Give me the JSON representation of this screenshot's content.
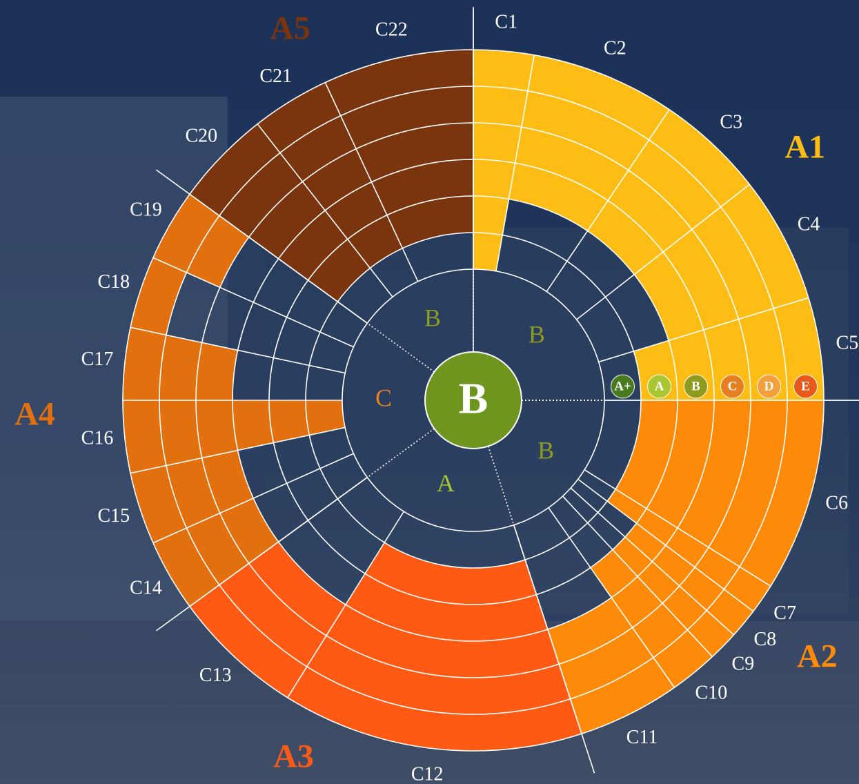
{
  "chart_data": {
    "type": "rating-wheel",
    "overall_rating": "B",
    "overall_color": "#6e961e",
    "scale": {
      "labels": [
        "A+",
        "A",
        "B",
        "C",
        "D",
        "E"
      ],
      "colors": [
        "#4a7a20",
        "#a8c532",
        "#8f9b1f",
        "#e67e22",
        "#f3a03c",
        "#e8591c"
      ]
    },
    "groups": [
      {
        "name": "A1",
        "color": "#fdbd14",
        "rating": "B",
        "criteria": [
          "C1",
          "C2",
          "C3",
          "C4",
          "C5"
        ],
        "levels": [
          6,
          4,
          4,
          4,
          5
        ]
      },
      {
        "name": "A2",
        "color": "#fe8a0a",
        "rating": "B",
        "criteria": [
          "C6",
          "C7",
          "C8",
          "C9",
          "C10",
          "C11"
        ],
        "levels": [
          5,
          5,
          4,
          4,
          4,
          3
        ]
      },
      {
        "name": "A3",
        "color": "#fe5a14",
        "rating": "A",
        "criteria": [
          "C12",
          "C13"
        ],
        "levels": [
          5,
          3
        ]
      },
      {
        "name": "A4",
        "color": "#e2700f",
        "rating": "C",
        "criteria": [
          "C14",
          "C15",
          "C16",
          "C17",
          "C18",
          "C19"
        ],
        "levels": [
          3,
          3,
          6,
          3,
          1,
          2
        ]
      },
      {
        "name": "A5",
        "color": "#7a340e",
        "rating": "B",
        "criteria": [
          "C20",
          "C21",
          "C22"
        ],
        "levels": [
          5,
          5,
          5
        ]
      }
    ]
  }
}
